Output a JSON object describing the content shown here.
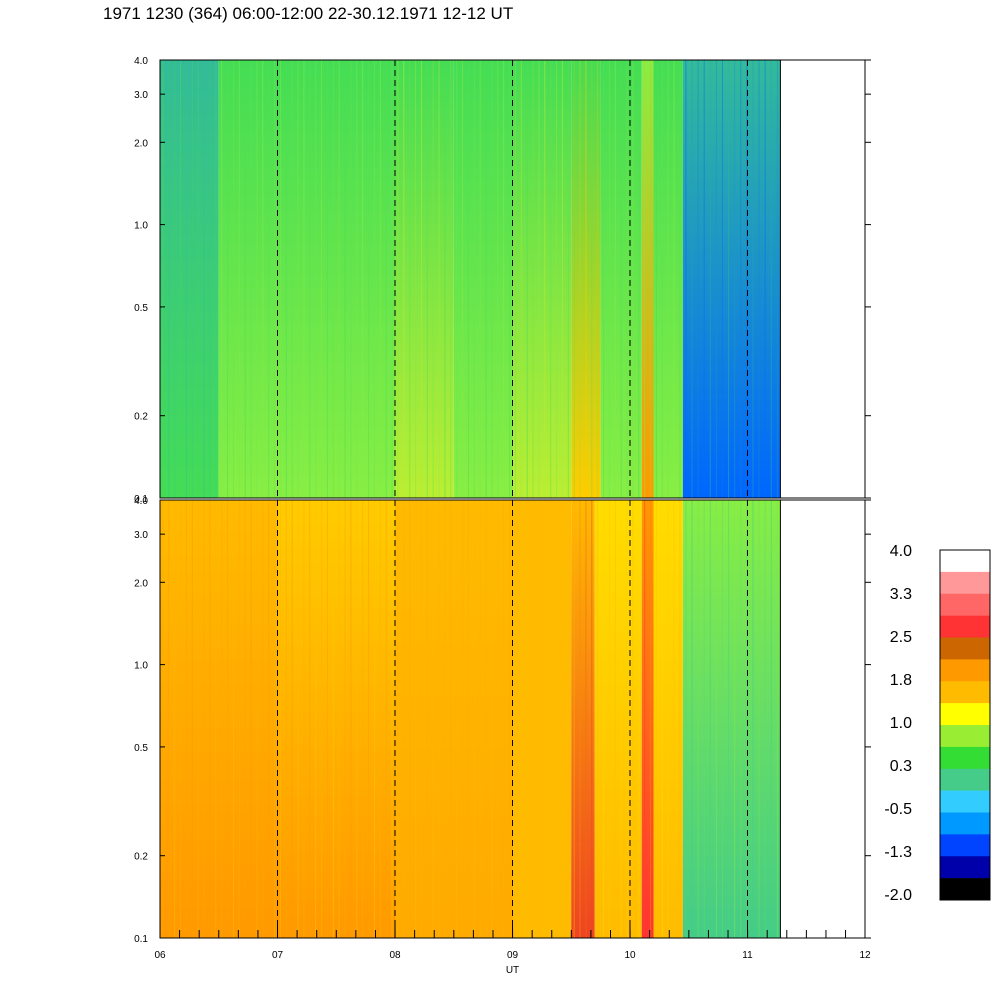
{
  "title": "1971 1230 (364) 06:00-12:00 22-30.12.1971  12-12 UT",
  "chart_data": {
    "type": "heatmap",
    "panels": [
      {
        "name": "upper",
        "ylim": [
          0.1,
          4.0
        ],
        "yscale": "log",
        "yticks": [
          "0.1",
          "0.2",
          "0.5",
          "1.0",
          "2.0",
          "3.0",
          "4.0"
        ],
        "pattern": [
          {
            "x": [
              6.0,
              6.5
            ],
            "low": "#44dd55",
            "high": "#33bb99"
          },
          {
            "x": [
              6.5,
              7.0
            ],
            "low": "#88ee44",
            "high": "#44dd55"
          },
          {
            "x": [
              7.0,
              8.0
            ],
            "low": "#88ee44",
            "high": "#44dd55"
          },
          {
            "x": [
              8.0,
              8.5
            ],
            "low": "#bbee33",
            "high": "#44dd55"
          },
          {
            "x": [
              8.5,
              9.0
            ],
            "low": "#88ee44",
            "high": "#44dd55"
          },
          {
            "x": [
              9.0,
              9.5
            ],
            "low": "#bbee33",
            "high": "#44dd55"
          },
          {
            "x": [
              9.5,
              9.75
            ],
            "low": "#ffcc00",
            "high": "#44dd55"
          },
          {
            "x": [
              9.75,
              10.1
            ],
            "low": "#88ee44",
            "high": "#44dd55"
          },
          {
            "x": [
              10.1,
              10.2
            ],
            "low": "#ff9900",
            "high": "#88ee44"
          },
          {
            "x": [
              10.2,
              10.45
            ],
            "low": "#88ee44",
            "high": "#44dd55"
          },
          {
            "x": [
              10.45,
              11.28
            ],
            "low": "#0066ff",
            "high": "#33bb99"
          }
        ]
      },
      {
        "name": "lower",
        "ylim": [
          0.1,
          4.0
        ],
        "yscale": "log",
        "yticks": [
          "0.1",
          "0.2",
          "0.5",
          "1.0",
          "2.0",
          "3.0",
          "4.0"
        ],
        "pattern": [
          {
            "x": [
              6.0,
              7.0
            ],
            "low": "#ff9900",
            "high": "#ffbb00"
          },
          {
            "x": [
              7.0,
              8.0
            ],
            "low": "#ff9900",
            "high": "#ffcc00"
          },
          {
            "x": [
              8.0,
              9.0
            ],
            "low": "#ffaa00",
            "high": "#ffbb00"
          },
          {
            "x": [
              9.0,
              9.5
            ],
            "low": "#ffbb00",
            "high": "#ffbb00"
          },
          {
            "x": [
              9.5,
              9.7
            ],
            "low": "#ee4422",
            "high": "#ffbb00"
          },
          {
            "x": [
              9.7,
              10.1
            ],
            "low": "#ffbb00",
            "high": "#ffdd00"
          },
          {
            "x": [
              10.1,
              10.2
            ],
            "low": "#ff3333",
            "high": "#ff9900"
          },
          {
            "x": [
              10.2,
              10.45
            ],
            "low": "#ffbb00",
            "high": "#ffdd00"
          },
          {
            "x": [
              10.45,
              11.28
            ],
            "low": "#44cc88",
            "high": "#88ee44"
          }
        ]
      }
    ],
    "x_axis": {
      "label": "UT",
      "ticks": [
        "06",
        "07",
        "08",
        "09",
        "10",
        "11",
        "12"
      ],
      "range": [
        6,
        12
      ],
      "data_end": 11.28,
      "dashed_lines": [
        7,
        8,
        9,
        10,
        11
      ]
    },
    "colorbar": {
      "labels": [
        "4.0",
        "3.3",
        "2.5",
        "1.8",
        "1.0",
        "0.3",
        "-0.5",
        "-1.3",
        "-2.0"
      ],
      "colors": [
        "#ffffff",
        "#ff9999",
        "#ff6666",
        "#ff3333",
        "#cc6600",
        "#ff9900",
        "#ffbb00",
        "#ffff00",
        "#99ee33",
        "#33dd33",
        "#44cc88",
        "#33ccff",
        "#0099ff",
        "#0044ff",
        "#0000aa",
        "#000000"
      ]
    }
  }
}
